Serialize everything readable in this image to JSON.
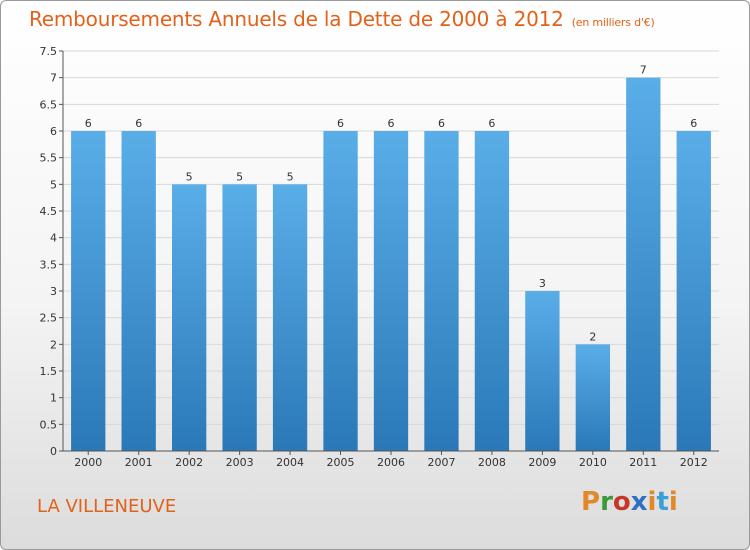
{
  "header": {
    "title": "Remboursements Annuels de la Dette de 2000 à 2012",
    "unit": "(en milliers d'€)"
  },
  "footer": {
    "place": "LA VILLENEUVE",
    "brand": "Proxiti",
    "brand_colors": [
      "#e0882a",
      "#3a9a3a",
      "#c8382a",
      "#2f6fc6",
      "#e0882a",
      "#3aa0d8",
      "#e0882a"
    ]
  },
  "colors": {
    "title": "#e2621a",
    "bar_top": "#5aaee8",
    "bar_bottom": "#2a78b8",
    "grid": "#d8d8d8"
  },
  "chart_data": {
    "type": "bar",
    "title": "Remboursements Annuels de la Dette de 2000 à 2012",
    "categories": [
      "2000",
      "2001",
      "2002",
      "2003",
      "2004",
      "2005",
      "2006",
      "2007",
      "2008",
      "2009",
      "2010",
      "2011",
      "2012"
    ],
    "values": [
      6,
      6,
      5,
      5,
      5,
      6,
      6,
      6,
      6,
      3,
      2,
      7,
      6
    ],
    "value_labels": [
      "6",
      "6",
      "5",
      "5",
      "5",
      "6",
      "6",
      "6",
      "6",
      "3",
      "2",
      "7",
      "6"
    ],
    "ylim": [
      0,
      7.5
    ],
    "yticks": [
      "0",
      "0.5",
      "1",
      "1.5",
      "2",
      "2.5",
      "3",
      "3.5",
      "4",
      "4.5",
      "5",
      "5.5",
      "6",
      "6.5",
      "7",
      "7.5"
    ],
    "grid": true
  }
}
